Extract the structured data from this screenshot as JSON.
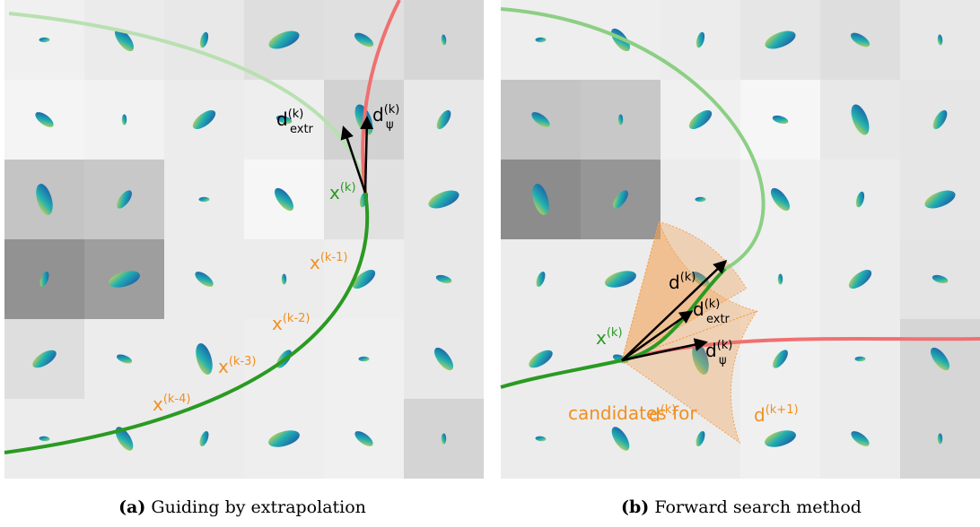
{
  "panels": [
    {
      "caption": {
        "label": "(a)",
        "text": "Guiding by extrapolation"
      },
      "annotations": [
        {
          "base": "d",
          "sup": "(k)",
          "sub": "extr"
        },
        {
          "base": "d",
          "sup": "(k)",
          "sub": "ψ"
        },
        {
          "base": "x",
          "sup": "(k)"
        },
        {
          "base": "x",
          "sup": "(k-1)"
        },
        {
          "base": "x",
          "sup": "(k-2)"
        },
        {
          "base": "x",
          "sup": "(k-3)"
        },
        {
          "base": "x",
          "sup": "(k-4)"
        }
      ]
    },
    {
      "caption": {
        "label": "(b)",
        "text": "Forward search method"
      },
      "annotations": [
        {
          "base": "d",
          "sup": "(k)"
        },
        {
          "base": "d",
          "sup": "(k)",
          "sub": "extr"
        },
        {
          "base": "d",
          "sup": "(k)",
          "sub": "ψ"
        },
        {
          "base": "x",
          "sup": "(k)"
        },
        {
          "base": "candidates for"
        },
        {
          "base": "d",
          "sup": "(k)"
        },
        {
          "base": "d",
          "sup": "(k+1)"
        }
      ]
    }
  ]
}
